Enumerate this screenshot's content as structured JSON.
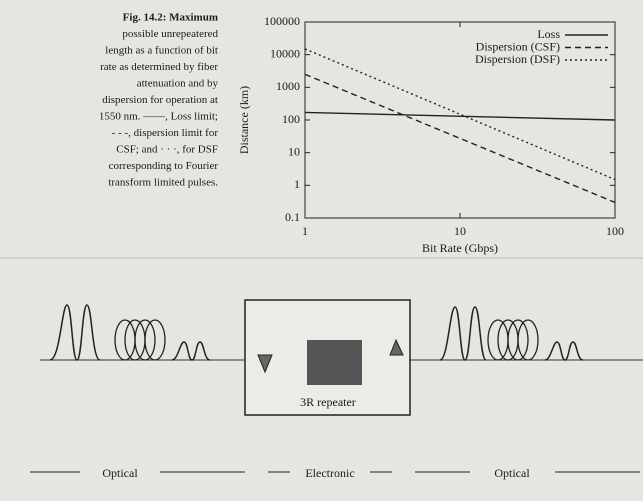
{
  "caption": {
    "lines": [
      "Fig. 14.2:  Maximum",
      "possible unrepeatered",
      "length as a function of bit",
      "rate as determined by fiber",
      "attenuation and by",
      "dispersion for operation at",
      "1550 nm. ——, Loss limit;",
      "- - -, dispersion limit for",
      "CSF; and · · ·, for DSF",
      "corresponding to Fourier",
      "transform limited pulses."
    ]
  },
  "chart_data": {
    "type": "line",
    "x": [
      1,
      100
    ],
    "series": [
      {
        "name": "Loss",
        "color": "#222222",
        "dash": "solid",
        "values": [
          170,
          100
        ]
      },
      {
        "name": "Dispersion (CSF)",
        "color": "#222222",
        "dash": "dashed",
        "values": [
          2500,
          0.3
        ]
      },
      {
        "name": "Dispersion (DSF)",
        "color": "#222222",
        "dash": "dotted",
        "values": [
          15000,
          1.5
        ]
      }
    ],
    "xlabel": "Bit Rate (Gbps)",
    "ylabel": "Distance (km)",
    "xlim": [
      1,
      100
    ],
    "ylim": [
      0.1,
      100000
    ],
    "xticks": [
      1,
      10,
      100
    ],
    "yticks": [
      0.1,
      1,
      10,
      100,
      1000,
      10000,
      100000
    ],
    "log_x": true,
    "log_y": true,
    "legend": "upper right"
  },
  "diagram": {
    "box_label": "3R repeater",
    "labels": [
      "Optical",
      "Electronic",
      "Optical"
    ]
  }
}
